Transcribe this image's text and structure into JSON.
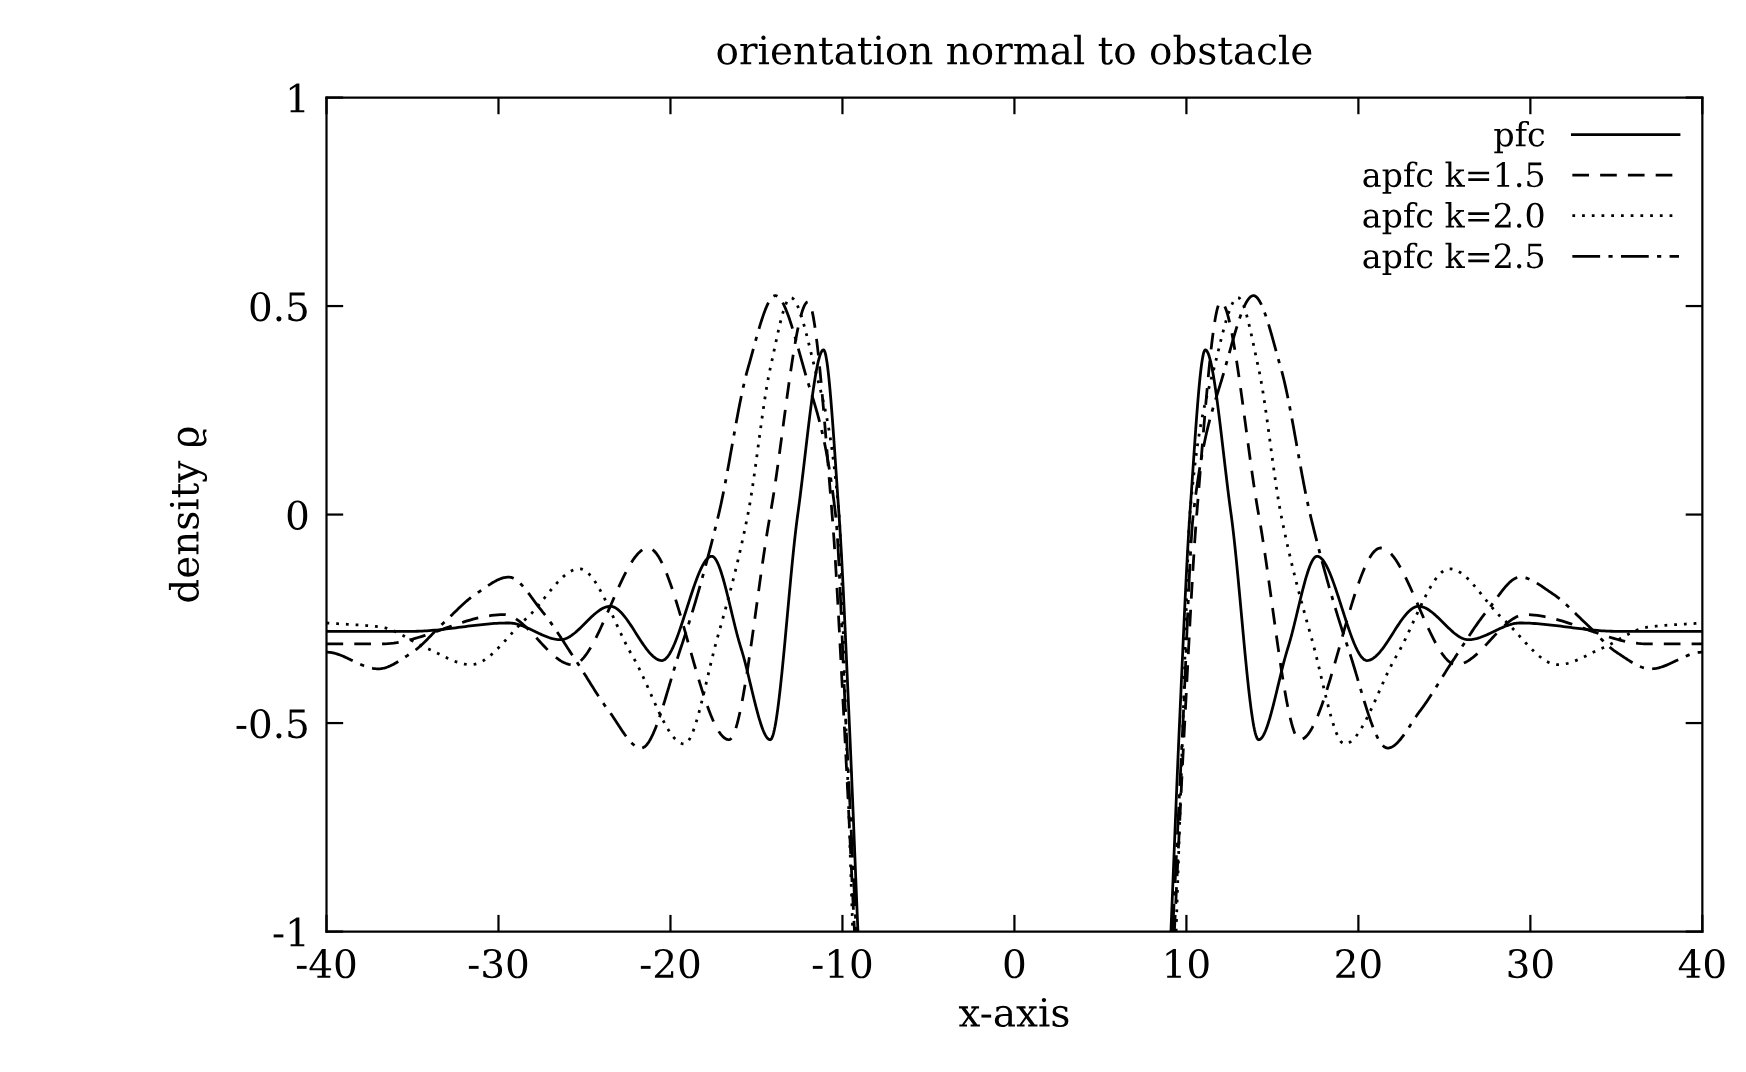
{
  "chart_data": {
    "type": "line",
    "title": "orientation normal to obstacle",
    "xlabel": "x-axis",
    "ylabel": "density ϱ",
    "xlim": [
      -40,
      40
    ],
    "ylim": [
      -1,
      1
    ],
    "xticks": [
      -40,
      -30,
      -20,
      -10,
      0,
      10,
      20,
      30,
      40
    ],
    "yticks": [
      -1,
      -0.5,
      0,
      0.5,
      1
    ],
    "grid": false,
    "legend": "top right",
    "series": [
      {
        "name": "pfc",
        "color": "#000000",
        "line_style": "solid",
        "x": [
          -40,
          -35,
          -29.4,
          -26.4,
          -23.5,
          -20.5,
          -17.6,
          -15.9,
          -14.2,
          -12.6,
          -11.1,
          -10.2,
          -9.6,
          -9.1,
          0,
          9.1,
          9.6,
          10.2,
          11.1,
          12.6,
          14.2,
          15.9,
          17.6,
          20.5,
          23.5,
          26.4,
          29.4,
          35,
          40
        ],
        "values": [
          -0.28,
          -0.28,
          -0.26,
          -0.3,
          -0.22,
          -0.35,
          -0.1,
          -0.32,
          -0.54,
          0,
          0.395,
          0,
          -0.5,
          -1,
          null,
          -1,
          -0.5,
          0,
          0.395,
          0,
          -0.54,
          -0.32,
          -0.1,
          -0.35,
          -0.22,
          -0.3,
          -0.26,
          -0.28,
          -0.28
        ]
      },
      {
        "name": "apfc k=1.5",
        "color": "#000000",
        "line_style": "dashed",
        "x": [
          -40,
          -36.8,
          -29.7,
          -25.7,
          -21.3,
          -16.6,
          -14.2,
          -12.0,
          -10.6,
          -9.9,
          -9.3,
          0,
          9.3,
          9.9,
          10.6,
          12.0,
          14.2,
          16.6,
          21.3,
          25.7,
          29.7,
          36.8,
          40
        ],
        "values": [
          -0.31,
          -0.31,
          -0.24,
          -0.36,
          -0.08,
          -0.54,
          0,
          0.51,
          0,
          -0.5,
          -1,
          null,
          -1,
          -0.5,
          0,
          0.51,
          0,
          -0.54,
          -0.08,
          -0.36,
          -0.24,
          -0.31,
          -0.31
        ]
      },
      {
        "name": "apfc k=2.0",
        "color": "#000000",
        "line_style": "dotted",
        "x": [
          -40,
          -36.8,
          -34.2,
          -31.6,
          -28.4,
          -25.3,
          -22.2,
          -19.2,
          -17.3,
          -15.5,
          -14.2,
          -13.0,
          -11.6,
          -10.2,
          -9.8,
          -9.4,
          0,
          9.4,
          9.8,
          10.2,
          11.6,
          13.0,
          14.2,
          15.5,
          17.3,
          19.2,
          22.2,
          25.3,
          28.4,
          31.6,
          34.2,
          36.8,
          40
        ],
        "values": [
          -0.26,
          -0.27,
          -0.32,
          -0.36,
          -0.25,
          -0.13,
          -0.34,
          -0.55,
          -0.3,
          0,
          0.35,
          0.52,
          0.35,
          0,
          -0.5,
          -1,
          null,
          -1,
          -0.5,
          0,
          0.35,
          0.52,
          0.35,
          0,
          -0.3,
          -0.55,
          -0.34,
          -0.13,
          -0.25,
          -0.36,
          -0.32,
          -0.27,
          -0.26
        ]
      },
      {
        "name": "apfc k=2.5",
        "color": "#000000",
        "line_style": "dashdot",
        "x": [
          -40,
          -37,
          -35,
          -33.2,
          -31.3,
          -29.4,
          -27.5,
          -25.5,
          -23.6,
          -21.7,
          -19.4,
          -17.2,
          -15.5,
          -13.9,
          -12.1,
          -10.4,
          -9.8,
          -9.2,
          0,
          9.2,
          9.8,
          10.4,
          12.1,
          13.9,
          15.5,
          17.2,
          19.4,
          21.7,
          23.6,
          25.5,
          27.5,
          29.4,
          31.3,
          33.2,
          35,
          37,
          40
        ],
        "values": [
          -0.33,
          -0.37,
          -0.33,
          -0.26,
          -0.19,
          -0.15,
          -0.23,
          -0.35,
          -0.47,
          -0.56,
          -0.32,
          0,
          0.35,
          0.525,
          0.33,
          0,
          -0.5,
          -1,
          null,
          -1,
          -0.5,
          0,
          0.33,
          0.525,
          0.35,
          0,
          -0.32,
          -0.56,
          -0.47,
          -0.35,
          -0.23,
          -0.15,
          -0.19,
          -0.26,
          -0.33,
          -0.37,
          -0.33
        ]
      }
    ]
  }
}
